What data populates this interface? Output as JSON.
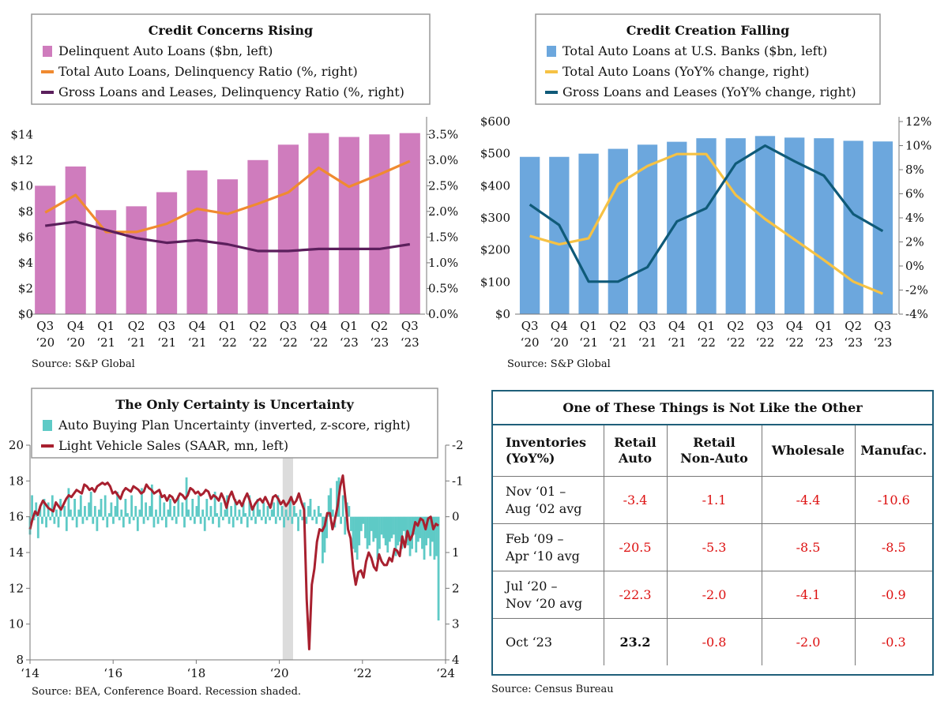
{
  "chart_data": [
    {
      "type": "bar+line",
      "title": "Credit Concerns Rising",
      "categories": [
        "Q3\n‘20",
        "Q4\n‘20",
        "Q1\n‘21",
        "Q2\n‘21",
        "Q3\n‘21",
        "Q4\n‘21",
        "Q1\n‘22",
        "Q2\n‘22",
        "Q3\n‘22",
        "Q4\n‘22",
        "Q1\n‘23",
        "Q2\n‘23",
        "Q3\n‘23"
      ],
      "left_axis": {
        "ticks": [
          "$0",
          "$2",
          "$4",
          "$6",
          "$8",
          "$10",
          "$12",
          "$14"
        ],
        "ylim": [
          0,
          15
        ]
      },
      "right_axis": {
        "ticks": [
          "0.0%",
          "0.5%",
          "1.0%",
          "1.5%",
          "2.0%",
          "2.5%",
          "3.0%",
          "3.5%"
        ],
        "ylim": [
          0,
          3.75
        ]
      },
      "series": [
        {
          "name": "Delinquent Auto Loans ($bn, left)",
          "kind": "bar",
          "axis": "left",
          "color": "#cf7cbd",
          "values": [
            10.0,
            11.5,
            8.1,
            8.4,
            9.5,
            11.2,
            10.5,
            12.0,
            13.2,
            14.1,
            13.8,
            14.0,
            14.1
          ]
        },
        {
          "name": "Total Auto Loans, Delinquency Ratio (%, right)",
          "kind": "line",
          "axis": "right",
          "color": "#f08a30",
          "values": [
            1.98,
            2.32,
            1.6,
            1.6,
            1.76,
            2.05,
            1.95,
            2.15,
            2.37,
            2.85,
            2.48,
            2.72,
            2.98
          ]
        },
        {
          "name": "Gross Loans and Leases, Delinquency Ratio (%, right)",
          "kind": "line",
          "axis": "right",
          "color": "#5b1f5c",
          "values": [
            1.72,
            1.8,
            1.64,
            1.48,
            1.39,
            1.44,
            1.36,
            1.23,
            1.23,
            1.27,
            1.27,
            1.27,
            1.36
          ]
        }
      ],
      "source": "Source: S&P Global"
    },
    {
      "type": "bar+line",
      "title": "Credit Creation Falling",
      "categories": [
        "Q3\n‘20",
        "Q4\n‘20",
        "Q1\n‘21",
        "Q2\n‘21",
        "Q3\n‘21",
        "Q4\n‘21",
        "Q1\n‘22",
        "Q2\n‘22",
        "Q3\n‘22",
        "Q4\n‘22",
        "Q1\n‘23",
        "Q2\n‘23",
        "Q3\n‘23"
      ],
      "left_axis": {
        "ticks": [
          "$0",
          "$100",
          "$200",
          "$300",
          "$400",
          "$500",
          "$600"
        ],
        "ylim": [
          0,
          600
        ]
      },
      "right_axis": {
        "ticks": [
          "-4%",
          "-2%",
          "0%",
          "2%",
          "4%",
          "6%",
          "8%",
          "10%",
          "12%"
        ],
        "ylim": [
          -4,
          12
        ]
      },
      "series": [
        {
          "name": "Total Auto Loans at U.S. Banks ($bn, left)",
          "kind": "bar",
          "axis": "left",
          "color": "#6ca7dd",
          "values": [
            490,
            490,
            500,
            515,
            528,
            537,
            548,
            548,
            555,
            550,
            548,
            540,
            538
          ]
        },
        {
          "name": "Total Auto Loans (YoY% change, right)",
          "kind": "line",
          "axis": "right",
          "color": "#f6c244",
          "values": [
            2.5,
            1.8,
            2.3,
            6.8,
            8.3,
            9.3,
            9.3,
            5.9,
            3.9,
            2.2,
            0.5,
            -1.3,
            -2.3
          ]
        },
        {
          "name": "Gross Loans and Leases (YoY% change, right)",
          "kind": "line",
          "axis": "right",
          "color": "#0f5a78",
          "values": [
            5.1,
            3.4,
            -1.3,
            -1.3,
            -0.1,
            3.7,
            4.8,
            8.5,
            10.0,
            8.7,
            7.5,
            4.3,
            2.9
          ]
        }
      ],
      "source": "Source: S&P Global"
    },
    {
      "type": "bar+line",
      "title": "The Only Certainty is Uncertainty",
      "x_ticks": [
        "‘14",
        "‘16",
        "‘18",
        "‘20",
        "‘22",
        "‘24"
      ],
      "left_axis": {
        "ticks": [
          "8",
          "10",
          "12",
          "14",
          "16",
          "18",
          "20"
        ],
        "ylim": [
          8,
          20
        ]
      },
      "right_axis": {
        "ticks": [
          "4",
          "3",
          "2",
          "1",
          "0",
          "-1",
          "-2"
        ],
        "ylim": [
          4,
          -2
        ],
        "inverted": true
      },
      "recession": [
        2020.08,
        2020.33
      ],
      "series": [
        {
          "name": "Auto Buying Plan Uncertainty (inverted, z-score, right)",
          "kind": "bar",
          "axis": "right",
          "color": "#5ecac6",
          "x_range": [
            2014.0,
            2023.83
          ],
          "values": [
            0.5,
            -0.6,
            0.1,
            -0.4,
            0.6,
            -0.3,
            0.2,
            -0.5,
            0.3,
            -0.4,
            0.1,
            -0.6,
            0.2,
            -0.2,
            0.3,
            -0.5,
            0.0,
            -0.3,
            0.4,
            -0.8,
            -0.2,
            0.1,
            -0.5,
            0.3,
            -0.2,
            -0.6,
            0.2,
            -0.3,
            0.1,
            -0.4,
            -0.7,
            0.2,
            -0.3,
            0.4,
            -0.2,
            -0.5,
            0.1,
            -0.6,
            0.3,
            -0.1,
            -0.4,
            0.2,
            -0.3,
            -0.7,
            0.1,
            -0.2,
            0.3,
            -0.5,
            -0.1,
            0.2,
            -0.6,
            0.1,
            -0.3,
            0.4,
            -0.2,
            -0.8,
            0.2,
            -0.4,
            0.1,
            -0.3,
            -0.9,
            0.3,
            -0.2,
            0.2,
            -0.6,
            0.1,
            -0.4,
            0.3,
            -0.2,
            -0.5,
            0.1,
            -0.3,
            0.2,
            -0.6,
            0.0,
            -0.4,
            0.3,
            -1.1,
            -0.2,
            0.1,
            -0.5,
            0.2,
            -0.3,
            -0.6,
            0.2,
            -0.2,
            0.4,
            -0.5,
            0.1,
            -0.3,
            0.2,
            -0.7,
            -0.1,
            0.3,
            -0.4,
            0.1,
            -0.2,
            -0.6,
            0.2,
            -0.3,
            0.3,
            -0.5,
            0.1,
            -0.2,
            0.2,
            -0.4,
            -0.1,
            0.3,
            -0.6,
            0.1,
            -0.3,
            0.2,
            -0.5,
            -0.2,
            0.1,
            -0.4,
            0.2,
            -0.3,
            0.1,
            -0.2,
            -0.4,
            0.2,
            -0.6,
            0.1,
            -0.3,
            0.3,
            -0.2,
            0.1,
            -0.5,
            0.2,
            -0.3,
            -0.1,
            0.4,
            -0.2,
            0.1,
            -0.4,
            0.2,
            -0.3,
            -0.5,
            0.1,
            -0.2,
            0.2,
            -0.3,
            -0.1,
            1.3,
            1.0,
            0.6,
            -0.6,
            -0.8,
            -0.2,
            0.3,
            -1.0,
            -1.1,
            0.2,
            -0.6,
            0.5,
            -0.4,
            -0.3,
            0.4,
            0.9,
            1.0,
            1.2,
            0.8,
            0.4,
            0.2,
            0.6,
            0.9,
            0.8,
            0.4,
            0.7,
            0.6,
            1.2,
            0.9,
            0.5,
            0.6,
            0.8,
            1.0,
            0.7,
            0.6,
            0.5,
            1.1,
            0.8,
            0.7,
            0.9,
            0.4,
            0.6,
            0.8,
            1.1,
            0.9,
            0.5,
            1.0,
            0.7,
            0.6,
            0.9,
            1.2,
            0.8,
            0.6,
            1.1,
            0.7,
            1.2,
            1.1,
            2.9
          ]
        },
        {
          "name": "Light Vehicle Sales (SAAR, mn, left)",
          "kind": "line",
          "axis": "left",
          "color": "#a8202f",
          "x_range": [
            2014.0,
            2023.83
          ],
          "values": [
            15.3,
            15.9,
            16.3,
            16.1,
            16.6,
            16.9,
            16.7,
            16.5,
            16.4,
            16.3,
            16.8,
            16.6,
            16.4,
            16.7,
            17.0,
            17.2,
            17.1,
            17.3,
            17.5,
            17.4,
            17.3,
            17.8,
            17.7,
            17.5,
            17.6,
            17.4,
            17.7,
            17.8,
            17.9,
            17.8,
            17.9,
            17.7,
            17.3,
            17.4,
            17.2,
            17.0,
            17.4,
            17.6,
            17.5,
            17.4,
            17.7,
            17.6,
            17.5,
            17.3,
            17.4,
            17.8,
            17.6,
            17.5,
            17.3,
            17.4,
            17.5,
            17.1,
            17.2,
            16.9,
            17.2,
            17.1,
            16.8,
            17.0,
            17.3,
            17.2,
            17.0,
            17.2,
            17.6,
            17.5,
            17.3,
            17.4,
            17.2,
            17.3,
            17.5,
            17.4,
            17.0,
            17.2,
            17.1,
            16.9,
            17.3,
            17.0,
            16.5,
            17.1,
            17.4,
            17.0,
            16.7,
            16.9,
            16.6,
            17.0,
            17.3,
            16.9,
            16.4,
            16.7,
            16.9,
            17.0,
            16.8,
            17.1,
            16.8,
            16.5,
            17.1,
            17.2,
            17.0,
            16.7,
            16.9,
            16.6,
            16.8,
            17.1,
            16.7,
            16.9,
            17.3,
            16.8,
            16.4,
            11.4,
            8.6,
            12.2,
            13.1,
            14.6,
            15.3,
            15.2,
            15.5,
            16.2,
            16.2,
            15.3,
            15.9,
            16.6,
            17.7,
            18.3,
            17.0,
            15.3,
            14.8,
            13.1,
            12.2,
            12.9,
            13.0,
            12.6,
            13.5,
            14.0,
            13.7,
            13.2,
            13.0,
            13.9,
            13.5,
            13.3,
            13.3,
            13.7,
            13.5,
            14.2,
            14.1,
            13.8,
            14.9,
            14.3,
            15.2,
            14.7,
            15.0,
            15.7,
            15.5,
            15.9,
            15.8,
            15.3,
            15.9,
            16.0,
            15.3,
            15.6,
            15.5
          ]
        }
      ],
      "source": "Source: BEA, Conference Board. Recession shaded."
    }
  ],
  "table": {
    "title": "One of These Things is Not Like the Other",
    "headers": [
      "Inventories\n(YoY%)",
      "Retail\nAuto",
      "Retail\nNon-Auto",
      "Wholesale",
      "Manufac."
    ],
    "rows": [
      {
        "label": "Nov ‘01 –\nAug ‘02 avg",
        "values": [
          "-3.4",
          "-1.1",
          "-4.4",
          "-10.6"
        ]
      },
      {
        "label": "Feb ‘09 –\nApr ‘10 avg",
        "values": [
          "-20.5",
          "-5.3",
          "-8.5",
          "-8.5"
        ]
      },
      {
        "label": "Jul ‘20 –\nNov ‘20 avg",
        "values": [
          "-22.3",
          "-2.0",
          "-4.1",
          "-0.9"
        ]
      },
      {
        "label": "Oct ‘23",
        "values": [
          "23.2",
          "-0.8",
          "-2.0",
          "-0.3"
        ]
      }
    ],
    "source": "Source: Census Bureau"
  }
}
